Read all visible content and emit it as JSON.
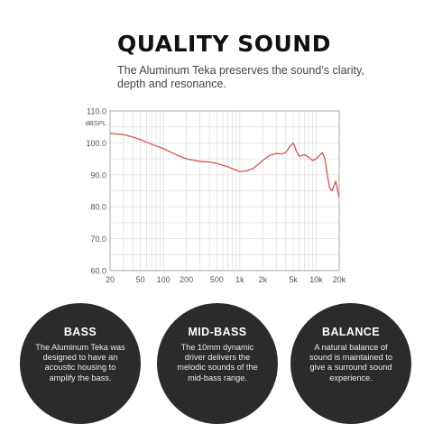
{
  "header": {
    "title": "QUALITY SOUND",
    "subtitle": "The Aluminum Teka preserves the sound’s clarity, depth and resonance."
  },
  "chart_data": {
    "type": "line",
    "title": "",
    "ylabel": "dBSPL",
    "xlabel": "",
    "x_scale": "log",
    "xlim": [
      20,
      20000
    ],
    "ylim": [
      60,
      110
    ],
    "grid": true,
    "x_ticks": [
      20,
      50,
      100,
      200,
      500,
      1000,
      2000,
      5000,
      10000,
      20000
    ],
    "x_tick_labels": [
      "20",
      "50",
      "100",
      "200",
      "500",
      "1k",
      "2k",
      "5k",
      "10k",
      "20k"
    ],
    "y_ticks": [
      60,
      70,
      80,
      90,
      100,
      110
    ],
    "y_tick_labels": [
      "60.0",
      "70.0",
      "80.0",
      "90.0",
      "100.0",
      "110.0"
    ],
    "line_color": "#d9534f",
    "series": [
      {
        "x": [
          20,
          30,
          40,
          50,
          70,
          100,
          150,
          200,
          300,
          400,
          500,
          700,
          1000,
          1200,
          1500,
          2000,
          2500,
          3000,
          3500,
          4000,
          4500,
          5000,
          5500,
          6000,
          7000,
          8000,
          9000,
          10000,
          11000,
          12000,
          13000,
          14000,
          15000,
          16000,
          17000,
          18000,
          19000,
          20000
        ],
        "y": [
          103,
          102.6,
          101.8,
          101,
          99.6,
          98.2,
          96.2,
          95,
          94.2,
          94,
          93.6,
          92.5,
          91,
          91.2,
          92,
          94.5,
          96.2,
          96.7,
          96.5,
          97,
          98.8,
          100,
          97.5,
          95.8,
          96.3,
          95.5,
          94.5,
          95,
          96,
          97,
          95,
          90,
          86,
          85,
          86.5,
          88,
          85.5,
          83
        ]
      }
    ]
  },
  "features": [
    {
      "title": "BASS",
      "body": "The Aluminum Teka was designed to have an acoustic housing to amplify the bass."
    },
    {
      "title": "MID-BASS",
      "body": "The 10mm dynamic driver delivers the melodic sounds of the mid-bass range."
    },
    {
      "title": "BALANCE",
      "body": "A natural balance of sound is maintained to give a surround sound experience."
    }
  ]
}
